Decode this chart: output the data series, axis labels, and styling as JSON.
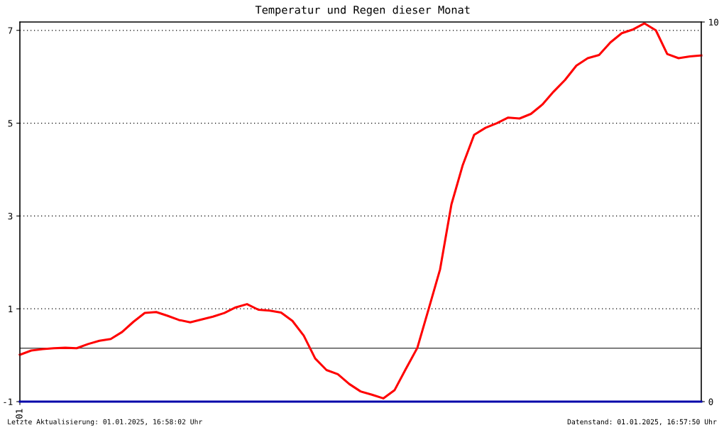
{
  "chart_data": {
    "type": "line",
    "title": "Temperatur und Regen dieser Monat",
    "categories": [
      "01",
      null,
      null,
      null,
      null,
      null,
      null,
      null,
      null,
      null,
      null,
      null,
      null,
      null,
      null,
      null,
      null,
      null,
      null,
      null,
      null,
      null,
      null,
      null,
      null,
      null,
      null,
      null,
      null,
      null,
      null,
      null,
      null,
      null,
      null,
      null,
      null,
      null,
      null,
      null,
      null,
      null,
      null,
      null,
      null,
      null,
      null,
      null,
      null,
      null,
      null,
      null,
      null,
      null,
      null,
      null,
      null,
      null,
      null,
      null,
      null
    ],
    "series": [
      {
        "color": "#ff0000",
        "values": [
          0.01,
          0.1,
          0.13,
          0.15,
          0.16,
          0.15,
          0.24,
          0.31,
          0.35,
          0.5,
          0.72,
          0.91,
          0.93,
          0.85,
          0.76,
          0.71,
          0.77,
          0.83,
          0.91,
          1.03,
          1.1,
          0.98,
          0.96,
          0.92,
          0.74,
          0.42,
          -0.07,
          -0.32,
          -0.41,
          -0.62,
          -0.78,
          -0.85,
          -0.93,
          -0.75,
          -0.29,
          0.16,
          1.0,
          1.85,
          3.25,
          4.1,
          4.75,
          4.9,
          5.0,
          5.12,
          5.1,
          5.2,
          5.4,
          5.68,
          5.93,
          6.24,
          6.4,
          6.47,
          6.74,
          6.94,
          7.02,
          7.15,
          7.0,
          6.49,
          6.4,
          6.44,
          6.46
        ]
      },
      {
        "color": "#0000aa",
        "axis": "y2",
        "values": [
          0,
          0,
          0,
          0,
          0,
          0,
          0,
          0,
          0,
          0,
          0,
          0,
          0,
          0,
          0,
          0,
          0,
          0,
          0,
          0,
          0,
          0,
          0,
          0,
          0,
          0,
          0,
          0,
          0,
          0,
          0,
          0,
          0,
          0,
          0,
          0,
          0,
          0,
          0,
          0,
          0,
          0,
          0,
          0,
          0,
          0,
          0,
          0,
          0,
          0,
          0,
          0,
          0,
          0,
          0,
          0,
          0,
          0,
          0,
          0,
          0
        ]
      }
    ],
    "ylim": [
      -1,
      7.18
    ],
    "yticks": [
      -1,
      1,
      3,
      5,
      7
    ],
    "y2lim": [
      0,
      10
    ],
    "y2ticks": [
      0,
      10
    ],
    "grid": "y",
    "ref_lines": [
      {
        "axis": "y",
        "value": 0.15,
        "color": "#000000"
      }
    ],
    "annotations": [
      "Letzte Aktualisierung: 01.01.2025, 16:58:02 Uhr",
      "Datenstand: 01.01.2025, 16:57:50 Uhr"
    ]
  }
}
